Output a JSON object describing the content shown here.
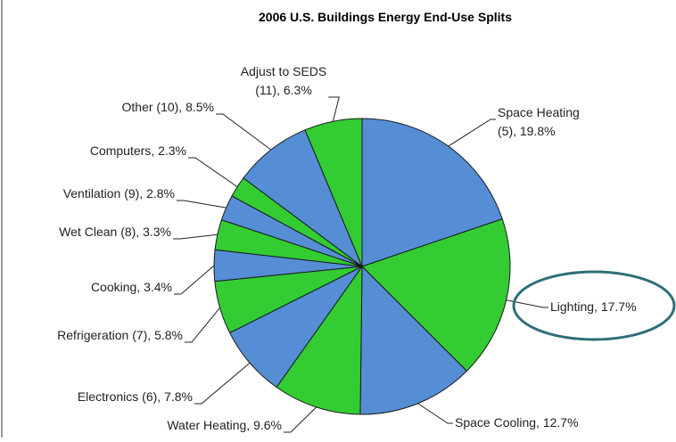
{
  "chart_data": {
    "type": "pie",
    "title": "2006 U.S. Buildings Energy End-Use Splits",
    "categories": [
      "Space Heating (5)",
      "Lighting",
      "Space Cooling",
      "Water Heating",
      "Electronics (6)",
      "Refrigeration (7)",
      "Cooking",
      "Wet Clean (8)",
      "Ventilation (9)",
      "Computers",
      "Other (10)",
      "Adjust to SEDS (11)"
    ],
    "values": [
      19.8,
      17.7,
      12.7,
      9.6,
      7.8,
      5.8,
      3.4,
      3.3,
      2.8,
      2.3,
      8.5,
      6.3
    ],
    "labels": [
      [
        "Space Heating",
        "(5), 19.8%"
      ],
      [
        "Lighting, 17.7%"
      ],
      [
        "Space Cooling, 12.7%"
      ],
      [
        "Water Heating, 9.6%"
      ],
      [
        "Electronics (6), 7.8%"
      ],
      [
        "Refrigeration (7), 5.8%"
      ],
      [
        "Cooking, 3.4%"
      ],
      [
        "Wet Clean (8), 3.3%"
      ],
      [
        "Ventilation (9), 2.8%"
      ],
      [
        "Computers, 2.3%"
      ],
      [
        "Other (10), 8.5%"
      ],
      [
        "Adjust to SEDS",
        "(11), 6.3%"
      ]
    ],
    "colors": [
      "#558ed5",
      "#33cc33",
      "#558ed5",
      "#33cc33",
      "#558ed5",
      "#33cc33",
      "#558ed5",
      "#33cc33",
      "#558ed5",
      "#33cc33",
      "#558ed5",
      "#33cc33"
    ]
  }
}
